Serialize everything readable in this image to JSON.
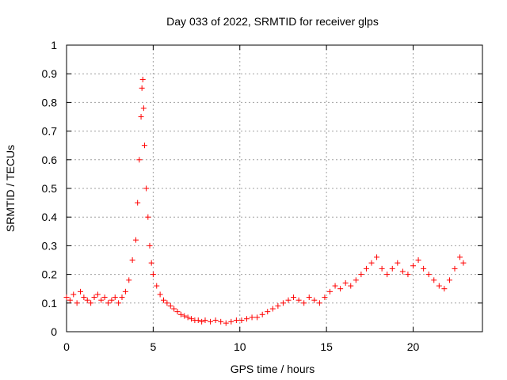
{
  "chart_data": {
    "type": "scatter",
    "title": "Day 033 of 2022, SRMTID for receiver glps",
    "xlabel": "GPS time / hours",
    "ylabel": "SRMTID / TECUs",
    "xlim": [
      0,
      24
    ],
    "ylim": [
      0,
      1
    ],
    "xticks": [
      0,
      5,
      10,
      15,
      20
    ],
    "xtick_labels": [
      "0",
      "5",
      "10",
      "15",
      "20"
    ],
    "yticks": [
      0,
      0.1,
      0.2,
      0.3,
      0.4,
      0.5,
      0.6,
      0.7,
      0.8,
      0.9,
      1
    ],
    "ytick_labels": [
      "0",
      "0.1",
      "0.2",
      "0.3",
      "0.4",
      "0.5",
      "0.6",
      "0.7",
      "0.8",
      "0.9",
      "1"
    ],
    "grid": true,
    "marker": "+",
    "marker_color": "#ff0000",
    "series": [
      {
        "name": "SRMTID",
        "x": [
          0.0,
          0.2,
          0.4,
          0.6,
          0.8,
          1.0,
          1.2,
          1.4,
          1.6,
          1.8,
          2.0,
          2.2,
          2.4,
          2.6,
          2.8,
          3.0,
          3.2,
          3.4,
          3.6,
          3.8,
          4.0,
          4.1,
          4.2,
          4.3,
          4.35,
          4.4,
          4.45,
          4.5,
          4.6,
          4.7,
          4.8,
          4.9,
          5.0,
          5.2,
          5.4,
          5.6,
          5.8,
          6.0,
          6.2,
          6.4,
          6.6,
          6.8,
          7.0,
          7.2,
          7.4,
          7.6,
          7.8,
          8.0,
          8.3,
          8.6,
          8.9,
          9.2,
          9.5,
          9.8,
          10.1,
          10.4,
          10.7,
          11.0,
          11.3,
          11.6,
          11.9,
          12.2,
          12.5,
          12.8,
          13.1,
          13.4,
          13.7,
          14.0,
          14.3,
          14.6,
          14.9,
          15.2,
          15.5,
          15.8,
          16.1,
          16.4,
          16.7,
          17.0,
          17.3,
          17.6,
          17.9,
          18.2,
          18.5,
          18.8,
          19.1,
          19.4,
          19.7,
          20.0,
          20.3,
          20.6,
          20.9,
          21.2,
          21.5,
          21.8,
          22.1,
          22.4,
          22.7,
          22.9
        ],
        "y": [
          0.12,
          0.11,
          0.13,
          0.1,
          0.14,
          0.12,
          0.11,
          0.1,
          0.12,
          0.13,
          0.11,
          0.12,
          0.1,
          0.11,
          0.12,
          0.1,
          0.12,
          0.14,
          0.18,
          0.25,
          0.32,
          0.45,
          0.6,
          0.75,
          0.85,
          0.88,
          0.78,
          0.65,
          0.5,
          0.4,
          0.3,
          0.24,
          0.2,
          0.16,
          0.13,
          0.11,
          0.1,
          0.09,
          0.08,
          0.07,
          0.06,
          0.055,
          0.05,
          0.045,
          0.04,
          0.04,
          0.035,
          0.04,
          0.035,
          0.04,
          0.035,
          0.03,
          0.035,
          0.04,
          0.04,
          0.045,
          0.05,
          0.05,
          0.06,
          0.07,
          0.08,
          0.09,
          0.1,
          0.11,
          0.12,
          0.11,
          0.1,
          0.12,
          0.11,
          0.1,
          0.12,
          0.14,
          0.16,
          0.15,
          0.17,
          0.16,
          0.18,
          0.2,
          0.22,
          0.24,
          0.26,
          0.22,
          0.2,
          0.22,
          0.24,
          0.21,
          0.2,
          0.23,
          0.25,
          0.22,
          0.2,
          0.18,
          0.16,
          0.15,
          0.18,
          0.22,
          0.26,
          0.24
        ]
      }
    ]
  }
}
